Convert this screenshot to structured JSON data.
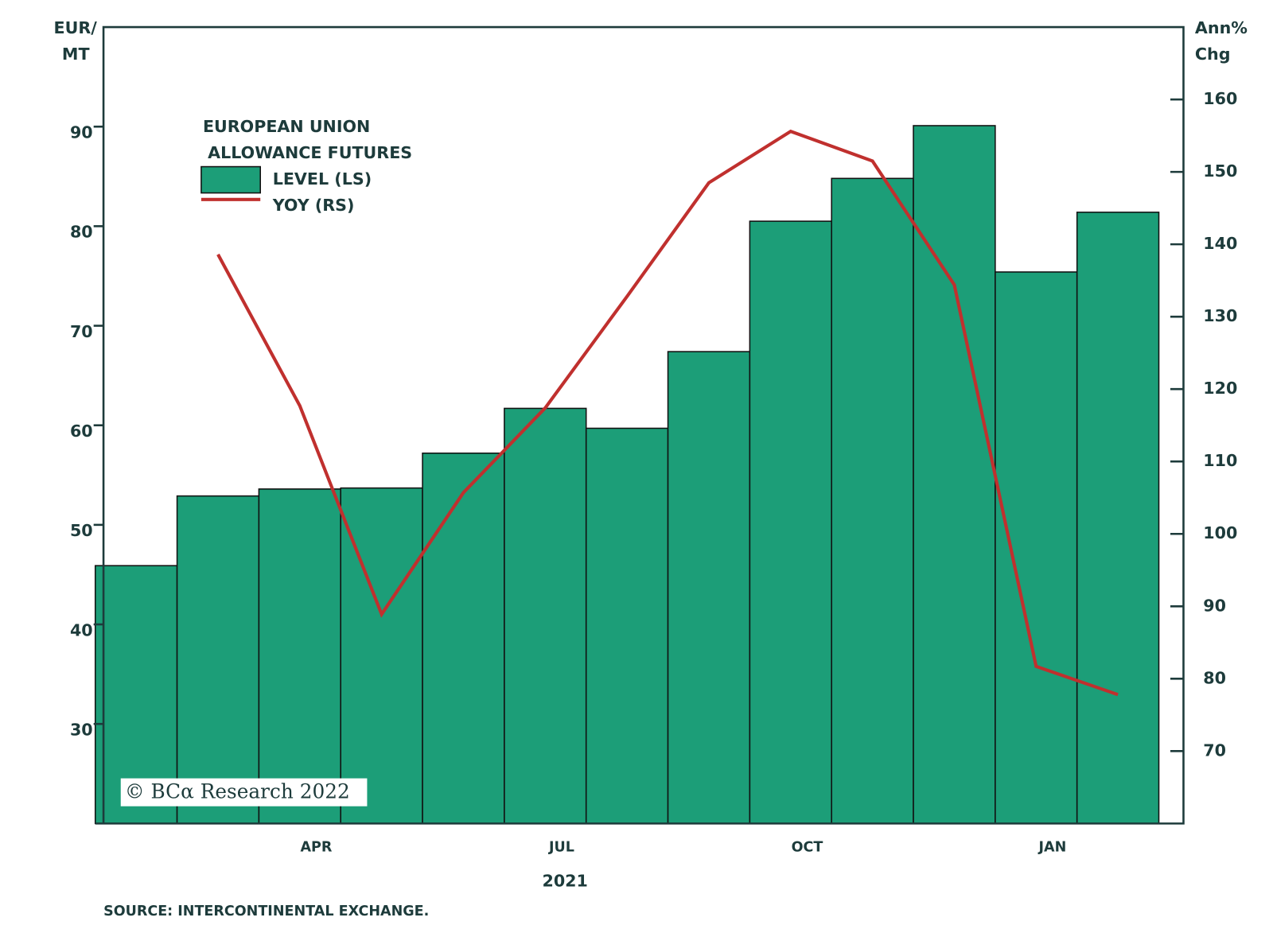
{
  "chart_data": {
    "type": "bar",
    "legend_title": [
      "EUROPEAN UNION",
      "ALLOWANCE FUTURES"
    ],
    "ylabel": [
      "EUR/",
      "MT"
    ],
    "y2label": [
      "Ann%",
      "Chg"
    ],
    "xlabel": "2021",
    "source": "SOURCE: INTERCONTINENTAL EXCHANGE.",
    "watermark": "© BCα Research 2022",
    "categories": [
      null,
      null,
      "APR",
      null,
      null,
      "JUL",
      null,
      null,
      "OCT",
      null,
      null,
      "JAN",
      null
    ],
    "series": [
      {
        "name": "LEVEL (LS)",
        "type": "bar",
        "color": "#1c9e78",
        "values": [
          45.9,
          52.9,
          53.6,
          53.7,
          57.2,
          61.7,
          59.7,
          67.4,
          80.5,
          84.8,
          90.1,
          75.4,
          81.4
        ]
      },
      {
        "name": "YOY (RS)",
        "type": "line",
        "axis": "y2",
        "color": "#c0302e",
        "values": [
          null,
          138.6,
          117.7,
          88.9,
          105.7,
          117.4,
          132.8,
          148.5,
          155.6,
          151.5,
          134.4,
          81.7,
          77.8
        ]
      }
    ],
    "ylim": [
      20,
      100
    ],
    "yticks": [
      30,
      40,
      50,
      60,
      70,
      80,
      90
    ],
    "y2lim": [
      60,
      170
    ],
    "y2ticks": [
      70,
      80,
      90,
      100,
      110,
      120,
      130,
      140,
      150,
      160
    ]
  }
}
